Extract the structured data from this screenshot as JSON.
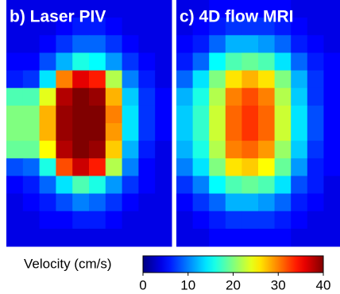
{
  "chart_data": [
    {
      "type": "heatmap",
      "title": "b) Laser PIV",
      "values": [
        [
          4,
          4,
          4,
          4,
          4,
          4,
          4,
          4,
          4,
          4
        ],
        [
          4,
          4,
          4,
          5,
          6,
          6,
          5,
          4,
          4,
          4
        ],
        [
          4,
          4,
          5,
          7,
          9,
          9,
          7,
          5,
          4,
          4
        ],
        [
          5,
          5,
          8,
          12,
          16,
          15,
          11,
          7,
          5,
          4
        ],
        [
          6,
          7,
          14,
          30,
          36,
          34,
          22,
          10,
          6,
          4
        ],
        [
          18,
          18,
          24,
          38,
          40,
          39,
          28,
          13,
          7,
          5
        ],
        [
          20,
          20,
          28,
          39,
          40,
          40,
          30,
          14,
          7,
          5
        ],
        [
          20,
          20,
          28,
          39,
          40,
          40,
          29,
          14,
          7,
          5
        ],
        [
          19,
          19,
          25,
          38,
          40,
          39,
          27,
          12,
          6,
          4
        ],
        [
          8,
          9,
          16,
          32,
          37,
          34,
          22,
          10,
          5,
          4
        ],
        [
          5,
          6,
          9,
          14,
          18,
          16,
          11,
          7,
          5,
          4
        ],
        [
          4,
          5,
          6,
          8,
          10,
          9,
          7,
          5,
          4,
          4
        ],
        [
          4,
          4,
          5,
          5,
          6,
          6,
          5,
          4,
          4,
          4
        ],
        [
          4,
          4,
          4,
          4,
          4,
          4,
          4,
          4,
          4,
          4
        ]
      ]
    },
    {
      "type": "heatmap",
      "title": "c) 4D flow MRI",
      "values": [
        [
          4,
          4,
          5,
          5,
          5,
          5,
          5,
          4,
          4,
          4
        ],
        [
          4,
          5,
          6,
          7,
          7,
          7,
          6,
          5,
          4,
          4
        ],
        [
          5,
          6,
          9,
          12,
          12,
          11,
          9,
          6,
          5,
          4
        ],
        [
          6,
          9,
          15,
          18,
          19,
          18,
          14,
          9,
          6,
          5
        ],
        [
          9,
          14,
          20,
          26,
          28,
          26,
          20,
          12,
          7,
          5
        ],
        [
          12,
          16,
          22,
          30,
          32,
          30,
          22,
          13,
          7,
          5
        ],
        [
          13,
          17,
          23,
          31,
          33,
          31,
          23,
          14,
          8,
          5
        ],
        [
          13,
          17,
          23,
          31,
          33,
          31,
          23,
          14,
          8,
          5
        ],
        [
          12,
          16,
          22,
          30,
          31,
          29,
          21,
          13,
          7,
          5
        ],
        [
          10,
          14,
          20,
          26,
          27,
          25,
          19,
          11,
          6,
          5
        ],
        [
          7,
          10,
          15,
          18,
          19,
          18,
          14,
          8,
          6,
          4
        ],
        [
          5,
          7,
          9,
          12,
          12,
          11,
          9,
          6,
          5,
          4
        ],
        [
          4,
          5,
          6,
          7,
          7,
          7,
          6,
          5,
          4,
          4
        ],
        [
          4,
          4,
          5,
          5,
          5,
          5,
          5,
          4,
          4,
          4
        ]
      ]
    }
  ],
  "colorbar": {
    "label": "Velocity (cm/s)",
    "clim": [
      0,
      40
    ],
    "ticks": [
      0,
      10,
      20,
      30,
      40
    ],
    "colormap": "jet"
  }
}
